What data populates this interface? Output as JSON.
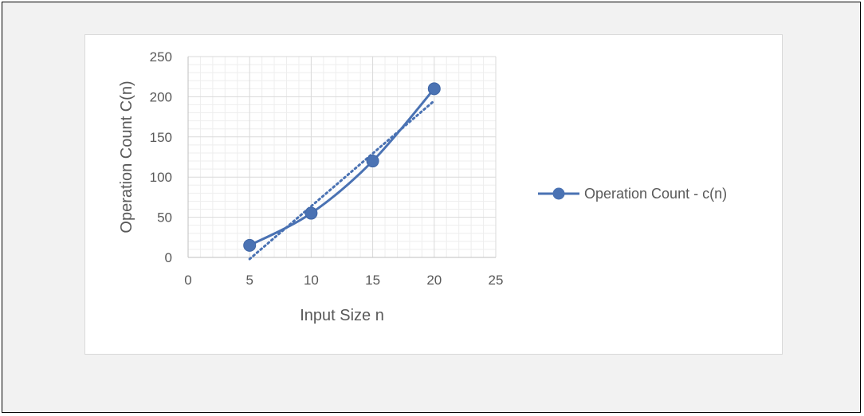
{
  "chart_data": {
    "type": "scatter",
    "title": "",
    "xlabel": "Input Size n",
    "ylabel": "Operation Count C(n)",
    "xlim": [
      0,
      25
    ],
    "ylim": [
      0,
      250
    ],
    "xticks": [
      0,
      5,
      10,
      15,
      20,
      25
    ],
    "yticks": [
      0,
      50,
      100,
      150,
      200,
      250
    ],
    "grid": true,
    "minor_grid": true,
    "legend_position": "right",
    "series": [
      {
        "name": "Operation Count - c(n)",
        "x": [
          5,
          10,
          15,
          20
        ],
        "y": [
          15,
          55,
          120,
          210
        ],
        "line": "smooth",
        "marker": "circle",
        "color": "#4a72b3"
      }
    ],
    "trendline": {
      "type": "linear",
      "style": "dotted",
      "color": "#4a72b3",
      "x": [
        5,
        20
      ],
      "y": [
        0,
        195
      ]
    }
  }
}
